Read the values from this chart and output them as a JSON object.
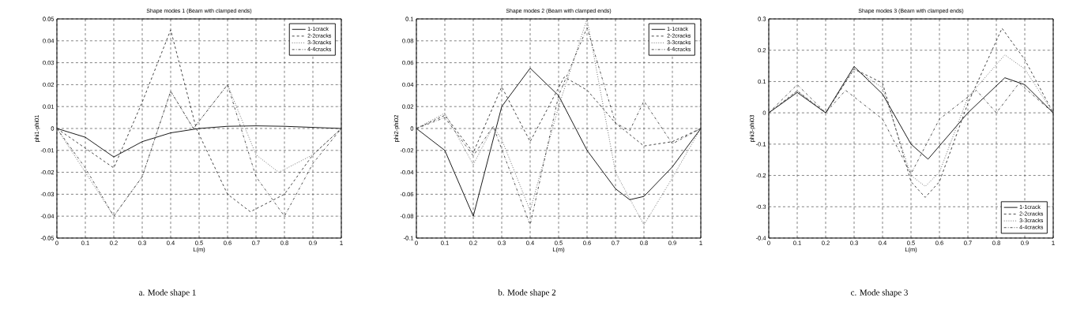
{
  "chart_data": [
    {
      "type": "line",
      "title": "Shape modes 1 (Beam with clamped ends)",
      "xlabel": "L(m)",
      "ylabel": "phi1-phi01",
      "annotations": [
        "a. Mode shape 1"
      ],
      "xlim": [
        0,
        1
      ],
      "ylim": [
        -0.05,
        0.05
      ],
      "xticks": [
        0,
        0.1,
        0.2,
        0.3,
        0.4,
        0.5,
        0.6,
        0.7,
        0.8,
        0.9,
        1
      ],
      "yticks": [
        -0.05,
        -0.04,
        -0.03,
        -0.02,
        -0.01,
        0,
        0.01,
        0.02,
        0.03,
        0.04,
        0.05
      ],
      "grid": true,
      "legend": "top right",
      "series": [
        {
          "name": "1-1crack",
          "color": "#000000",
          "line_style": "solid",
          "x": [
            0,
            0.1,
            0.2,
            0.3,
            0.4,
            0.5,
            0.6,
            0.7,
            0.8,
            0.9,
            1
          ],
          "values": [
            0,
            -0.004,
            -0.013,
            -0.006,
            -0.002,
            0,
            0.001,
            0.0012,
            0.001,
            0.0005,
            0
          ]
        },
        {
          "name": "2-2cracks",
          "color": "#303030",
          "line_style": "dashed",
          "x": [
            0,
            0.1,
            0.2,
            0.3,
            0.4,
            0.49,
            0.6,
            0.68,
            0.8,
            0.9,
            1
          ],
          "values": [
            0,
            -0.009,
            -0.018,
            0.012,
            0.045,
            0,
            -0.03,
            -0.038,
            -0.03,
            -0.012,
            0
          ]
        },
        {
          "name": "3-3cracks",
          "color": "#505050",
          "line_style": "dotted",
          "x": [
            0,
            0.1,
            0.2,
            0.3,
            0.4,
            0.48,
            0.6,
            0.7,
            0.78,
            0.9,
            1
          ],
          "values": [
            0,
            -0.02,
            -0.04,
            -0.022,
            0.017,
            0,
            0.02,
            -0.012,
            -0.02,
            -0.012,
            0
          ]
        },
        {
          "name": "4-4cracks",
          "color": "#404040",
          "line_style": "dashdot",
          "x": [
            0,
            0.1,
            0.2,
            0.3,
            0.4,
            0.48,
            0.6,
            0.7,
            0.8,
            0.9,
            1
          ],
          "values": [
            0,
            -0.018,
            -0.04,
            -0.022,
            0.017,
            0,
            0.02,
            -0.022,
            -0.04,
            -0.016,
            0
          ]
        }
      ]
    },
    {
      "type": "line",
      "title": "Shape modes 2 (Beam with clamped ends)",
      "xlabel": "L(m)",
      "ylabel": "phi2-phi02",
      "annotations": [
        "b. Mode shape 2"
      ],
      "xlim": [
        0,
        1
      ],
      "ylim": [
        -0.1,
        0.1
      ],
      "xticks": [
        0,
        0.1,
        0.2,
        0.3,
        0.4,
        0.5,
        0.6,
        0.7,
        0.8,
        0.9,
        1
      ],
      "yticks": [
        -0.1,
        -0.08,
        -0.06,
        -0.04,
        -0.02,
        0,
        0.02,
        0.04,
        0.06,
        0.08,
        0.1
      ],
      "grid": true,
      "legend": "top right",
      "series": [
        {
          "name": "1-1crack",
          "color": "#000000",
          "line_style": "solid",
          "x": [
            0,
            0.1,
            0.2,
            0.3,
            0.4,
            0.5,
            0.6,
            0.7,
            0.75,
            0.8,
            0.9,
            1
          ],
          "values": [
            0,
            -0.02,
            -0.08,
            0.02,
            0.055,
            0.03,
            -0.02,
            -0.055,
            -0.065,
            -0.062,
            -0.035,
            0
          ]
        },
        {
          "name": "2-2cracks",
          "color": "#303030",
          "line_style": "dashed",
          "x": [
            0,
            0.1,
            0.2,
            0.3,
            0.4,
            0.52,
            0.6,
            0.7,
            0.8,
            0.9,
            1
          ],
          "values": [
            0,
            0.012,
            -0.022,
            0.038,
            -0.012,
            0.047,
            0.035,
            0.005,
            -0.016,
            -0.012,
            0
          ]
        },
        {
          "name": "3-3cracks",
          "color": "#505050",
          "line_style": "dotted",
          "x": [
            0,
            0.1,
            0.2,
            0.27,
            0.3,
            0.4,
            0.5,
            0.6,
            0.7,
            0.8,
            0.9,
            1
          ],
          "values": [
            0,
            0.014,
            -0.033,
            0.002,
            -0.01,
            -0.075,
            0.02,
            0.1,
            -0.04,
            -0.088,
            -0.045,
            0
          ]
        },
        {
          "name": "4-4cracks",
          "color": "#404040",
          "line_style": "dashdot",
          "x": [
            0,
            0.1,
            0.2,
            0.27,
            0.4,
            0.5,
            0.6,
            0.7,
            0.75,
            0.8,
            0.9,
            1
          ],
          "values": [
            0,
            0.01,
            -0.025,
            0.002,
            -0.088,
            0.03,
            0.092,
            0.005,
            -0.002,
            0.025,
            -0.014,
            0
          ]
        }
      ]
    },
    {
      "type": "line",
      "title": "Shape modes 3 (Beam with clamped ends)",
      "xlabel": "L(m)",
      "ylabel": "phi3-phi03",
      "annotations": [
        "c. Mode shape 3"
      ],
      "xlim": [
        0,
        1
      ],
      "ylim": [
        -0.4,
        0.3
      ],
      "xticks": [
        0,
        0.1,
        0.2,
        0.3,
        0.4,
        0.5,
        0.6,
        0.7,
        0.8,
        0.9,
        1
      ],
      "yticks": [
        -0.4,
        -0.3,
        -0.2,
        -0.1,
        0,
        0.1,
        0.2,
        0.3
      ],
      "grid": true,
      "legend": "bottom right",
      "series": [
        {
          "name": "1-1crack",
          "color": "#000000",
          "line_style": "solid",
          "x": [
            0,
            0.1,
            0.2,
            0.3,
            0.4,
            0.5,
            0.56,
            0.7,
            0.83,
            0.9,
            1
          ],
          "values": [
            0,
            0.065,
            0,
            0.148,
            0.06,
            -0.1,
            -0.148,
            0,
            0.112,
            0.09,
            0
          ]
        },
        {
          "name": "2-2cracks",
          "color": "#303030",
          "line_style": "dashed",
          "x": [
            0,
            0.1,
            0.2,
            0.3,
            0.4,
            0.5,
            0.55,
            0.6,
            0.7,
            0.82,
            0.9,
            1
          ],
          "values": [
            0,
            0.07,
            0,
            0.14,
            0.095,
            -0.22,
            -0.27,
            -0.22,
            0.03,
            0.27,
            0.17,
            0
          ]
        },
        {
          "name": "3-3cracks",
          "color": "#505050",
          "line_style": "dotted",
          "x": [
            0,
            0.1,
            0.2,
            0.3,
            0.4,
            0.5,
            0.55,
            0.6,
            0.7,
            0.83,
            0.9,
            1
          ],
          "values": [
            0,
            0.07,
            0,
            0.14,
            0.08,
            -0.2,
            -0.235,
            -0.19,
            0.05,
            0.185,
            0.14,
            0
          ]
        },
        {
          "name": "4-4cracks",
          "color": "#404040",
          "line_style": "dashdot",
          "x": [
            0,
            0.1,
            0.2,
            0.27,
            0.4,
            0.5,
            0.6,
            0.73,
            0.8,
            0.88,
            1
          ],
          "values": [
            0,
            0.09,
            0,
            0.072,
            -0.02,
            -0.195,
            -0.02,
            0.072,
            0,
            0.095,
            0
          ]
        }
      ]
    }
  ]
}
